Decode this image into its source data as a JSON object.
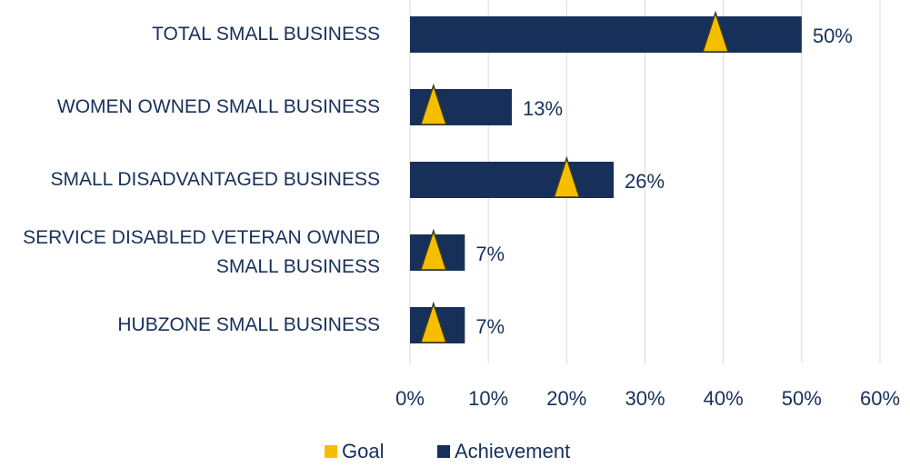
{
  "chart_data": {
    "type": "bar",
    "categories": [
      "TOTAL SMALL BUSINESS",
      "WOMEN OWNED SMALL BUSINESS",
      "SMALL DISADVANTAGED BUSINESS",
      "SERVICE DISABLED VETERAN OWNED SMALL BUSINESS",
      "HUBZONE SMALL BUSINESS"
    ],
    "series": [
      {
        "name": "Goal",
        "color": "#f5bf00",
        "values": [
          39,
          3,
          20,
          3,
          3
        ]
      },
      {
        "name": "Achievement",
        "color": "#17305a",
        "values": [
          50,
          13,
          26,
          7,
          7
        ],
        "value_labels": [
          "50%",
          "13%",
          "26%",
          "7%",
          "7%"
        ]
      }
    ],
    "xlim": [
      0,
      60
    ],
    "xticks": [
      {
        "value": 0,
        "label": "0%"
      },
      {
        "value": 10,
        "label": "10%"
      },
      {
        "value": 20,
        "label": "20%"
      },
      {
        "value": 30,
        "label": "30%"
      },
      {
        "value": 40,
        "label": "40%"
      },
      {
        "value": 50,
        "label": "50%"
      },
      {
        "value": 60,
        "label": "60%"
      }
    ],
    "grid": true,
    "legend": "bottom"
  }
}
